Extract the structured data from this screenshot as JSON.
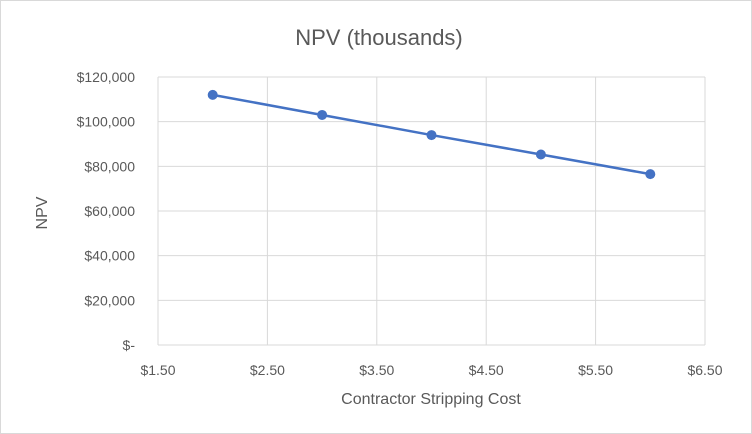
{
  "chart_data": {
    "type": "scatter",
    "title": "NPV (thousands)",
    "xlabel": "Contractor Stripping Cost",
    "ylabel": "NPV",
    "xlim": [
      1.5,
      6.5
    ],
    "ylim": [
      0,
      120000
    ],
    "x_ticks": [
      "$1.50",
      "$2.50",
      "$3.50",
      "$4.50",
      "$5.50",
      "$6.50"
    ],
    "y_ticks": [
      "$-",
      "$20,000",
      "$40,000",
      "$60,000",
      "$80,000",
      "$100,000",
      "$120,000"
    ],
    "grid": true,
    "legend": "none",
    "line_color": "#4472c4",
    "series": [
      {
        "x": [
          2,
          3,
          4,
          5,
          6
        ],
        "y": [
          112000,
          103000,
          94000,
          85300,
          76500
        ]
      }
    ]
  }
}
